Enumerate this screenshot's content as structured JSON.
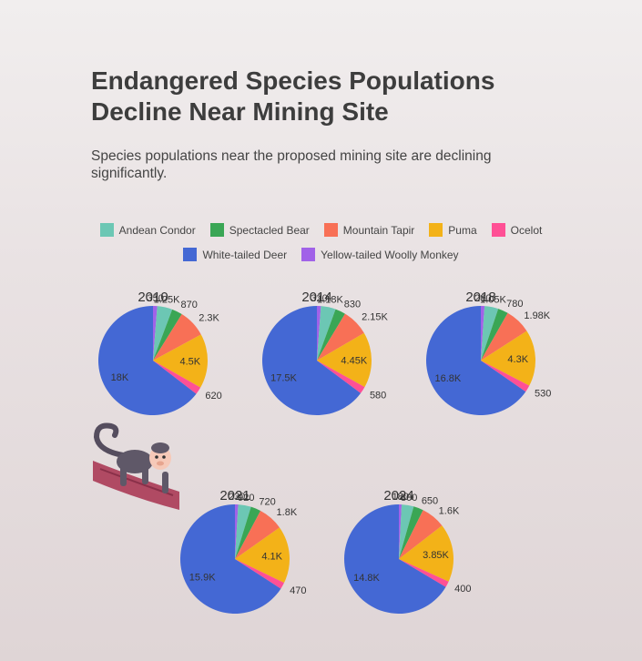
{
  "title": "Endangered Species Populations Decline Near Mining Site",
  "subtitle": "Species populations near the proposed mining site are declining significantly.",
  "chart_data": {
    "type": "pie",
    "legend": "top",
    "series_names": [
      "Andean Condor",
      "Spectacled Bear",
      "Mountain Tapir",
      "Puma",
      "Ocelot",
      "White-tailed Deer",
      "Yellow-tailed Woolly Monkey"
    ],
    "colors": [
      "#6cc7b4",
      "#3aa655",
      "#f87056",
      "#f3b218",
      "#ff5095",
      "#4468d4",
      "#a162e8"
    ],
    "pies": [
      {
        "title": "2010",
        "values": [
          1250,
          870,
          2300,
          4500,
          620,
          18000,
          350
        ],
        "labels": [
          "1.25K",
          "870",
          "2.3K",
          "4.5K",
          "620",
          "18K",
          "350"
        ]
      },
      {
        "title": "2014",
        "values": [
          1180,
          830,
          2150,
          4450,
          580,
          17500,
          320
        ],
        "labels": [
          "1.18K",
          "830",
          "2.15K",
          "4.45K",
          "580",
          "17.5K",
          "320"
        ]
      },
      {
        "title": "2018",
        "values": [
          1050,
          780,
          1980,
          4300,
          530,
          16800,
          280
        ],
        "labels": [
          "1.05K",
          "780",
          "1.98K",
          "4.3K",
          "530",
          "16.8K",
          "280"
        ]
      },
      {
        "title": "2021",
        "values": [
          920,
          720,
          1800,
          4100,
          470,
          15900,
          230
        ],
        "labels": [
          "920",
          "720",
          "1.8K",
          "4.1K",
          "470",
          "15.9K",
          "230"
        ]
      },
      {
        "title": "2024",
        "values": [
          800,
          650,
          1600,
          3850,
          400,
          14800,
          180
        ],
        "labels": [
          "800",
          "650",
          "1.6K",
          "3.85K",
          "400",
          "14.8K",
          "180"
        ]
      }
    ]
  },
  "decoration": {
    "icon": "monkey-on-branch-icon"
  }
}
